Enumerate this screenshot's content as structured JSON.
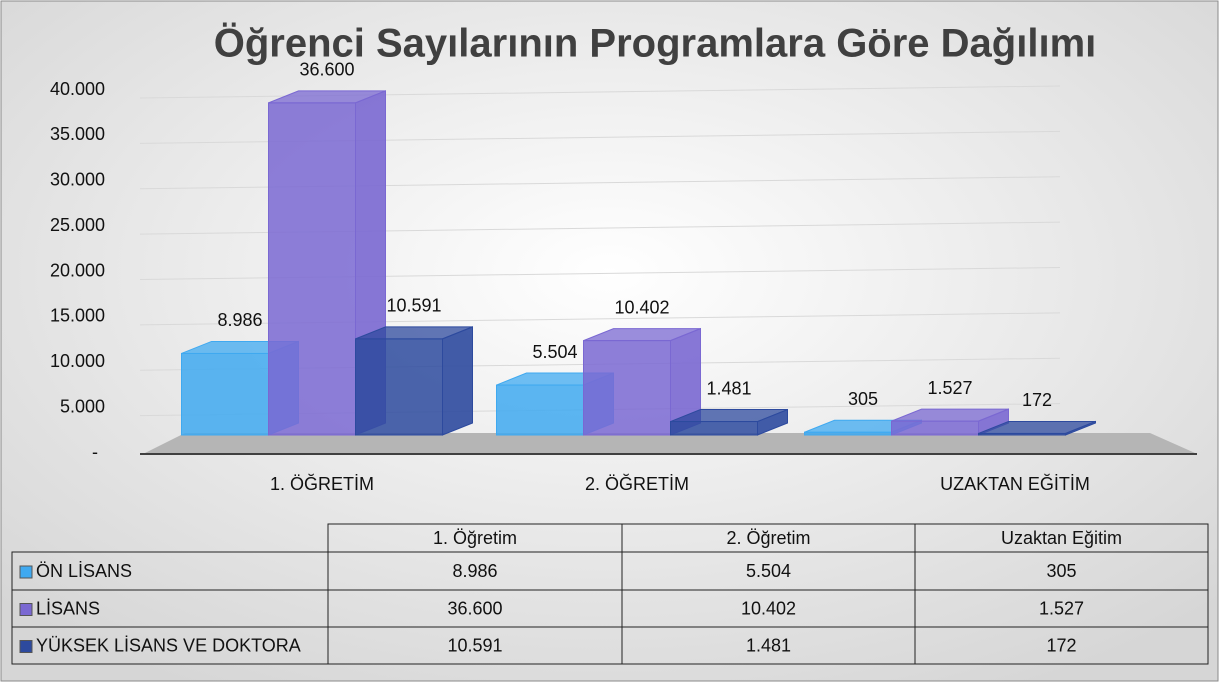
{
  "chart_data": {
    "type": "bar3d",
    "title": "Öğrenci Sayılarının Programlara Göre Dağılımı",
    "categories": [
      "1. ÖĞRETİM",
      "2. ÖĞRETİM",
      "UZAKTAN EĞİTİM"
    ],
    "table_categories": [
      "1. Öğretim",
      "2. Öğretim",
      "Uzaktan Eğitim"
    ],
    "series": [
      {
        "name": "ÖN LİSANS",
        "color": "#3fa9f0",
        "values": [
          8986,
          5504,
          305
        ],
        "value_labels": [
          "8.986",
          "5.504",
          "305"
        ]
      },
      {
        "name": "LİSANS",
        "color": "#7a68d2",
        "values": [
          36600,
          10402,
          1527
        ],
        "value_labels": [
          "36.600",
          "10.402",
          "1.527"
        ]
      },
      {
        "name": "YÜKSEK LİSANS VE DOKTORA",
        "color": "#2d4a9e",
        "values": [
          10591,
          1481,
          172
        ],
        "value_labels": [
          "10.591",
          "1.481",
          "172"
        ]
      }
    ],
    "ylim": [
      0,
      40000
    ],
    "yticks": [
      {
        "value": 0,
        "label": "-"
      },
      {
        "value": 5000,
        "label": "5.000"
      },
      {
        "value": 10000,
        "label": "10.000"
      },
      {
        "value": 15000,
        "label": "15.000"
      },
      {
        "value": 20000,
        "label": "20.000"
      },
      {
        "value": 25000,
        "label": "25.000"
      },
      {
        "value": 30000,
        "label": "30.000"
      },
      {
        "value": 35000,
        "label": "35.000"
      },
      {
        "value": 40000,
        "label": "40.000"
      }
    ],
    "grid": true
  }
}
